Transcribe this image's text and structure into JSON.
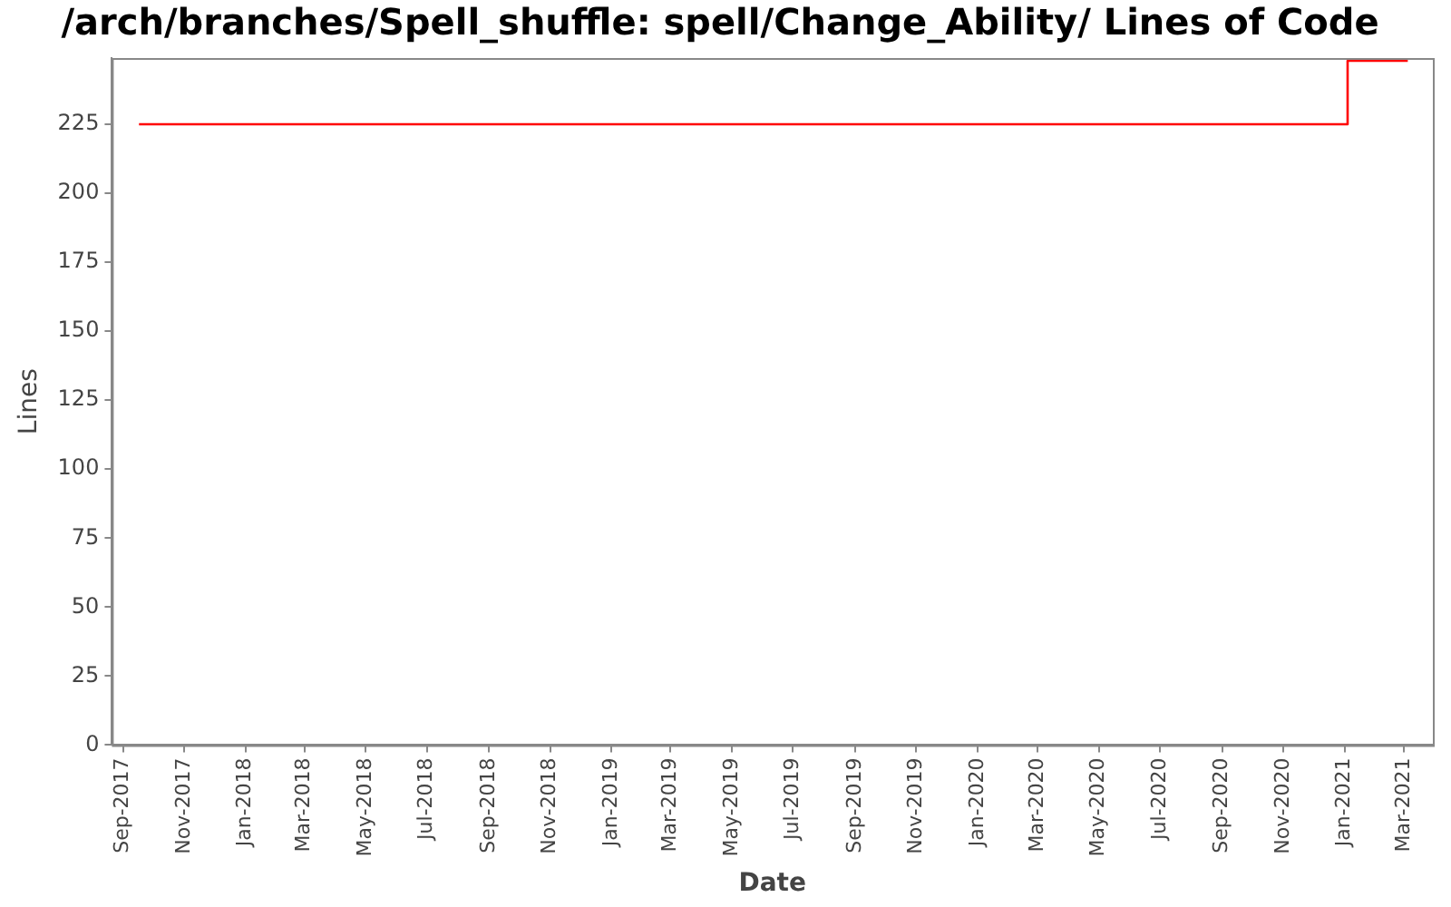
{
  "chart_data": {
    "type": "step",
    "title": "/arch/branches/Spell_shuffle: spell/Change_Ability/ Lines of Code",
    "xlabel": "Date",
    "ylabel": "Lines",
    "x": [
      "2017-09-17",
      "2021-01-04",
      "2021-03-05"
    ],
    "series": [
      {
        "color": "#ff0000",
        "values": [
          225,
          248,
          248
        ]
      }
    ],
    "xlim": [
      "2017-08-21",
      "2021-03-30"
    ],
    "xticks": [
      {
        "value": "2017-09-01",
        "label": "Sep-2017"
      },
      {
        "value": "2017-11-01",
        "label": "Nov-2017"
      },
      {
        "value": "2018-01-01",
        "label": "Jan-2018"
      },
      {
        "value": "2018-03-01",
        "label": "Mar-2018"
      },
      {
        "value": "2018-05-01",
        "label": "May-2018"
      },
      {
        "value": "2018-07-01",
        "label": "Jul-2018"
      },
      {
        "value": "2018-09-01",
        "label": "Sep-2018"
      },
      {
        "value": "2018-11-01",
        "label": "Nov-2018"
      },
      {
        "value": "2019-01-01",
        "label": "Jan-2019"
      },
      {
        "value": "2019-03-01",
        "label": "Mar-2019"
      },
      {
        "value": "2019-05-01",
        "label": "May-2019"
      },
      {
        "value": "2019-07-01",
        "label": "Jul-2019"
      },
      {
        "value": "2019-09-01",
        "label": "Sep-2019"
      },
      {
        "value": "2019-11-01",
        "label": "Nov-2019"
      },
      {
        "value": "2020-01-01",
        "label": "Jan-2020"
      },
      {
        "value": "2020-03-01",
        "label": "Mar-2020"
      },
      {
        "value": "2020-05-01",
        "label": "May-2020"
      },
      {
        "value": "2020-07-01",
        "label": "Jul-2020"
      },
      {
        "value": "2020-09-01",
        "label": "Sep-2020"
      },
      {
        "value": "2020-11-01",
        "label": "Nov-2020"
      },
      {
        "value": "2021-01-01",
        "label": "Jan-2021"
      },
      {
        "value": "2021-03-01",
        "label": "Mar-2021"
      }
    ],
    "ylim": [
      0,
      249
    ],
    "yticks": [
      0,
      25,
      50,
      75,
      100,
      125,
      150,
      175,
      200,
      225
    ],
    "grid": false,
    "legend": false,
    "marker": "none",
    "line_style": "solid"
  }
}
